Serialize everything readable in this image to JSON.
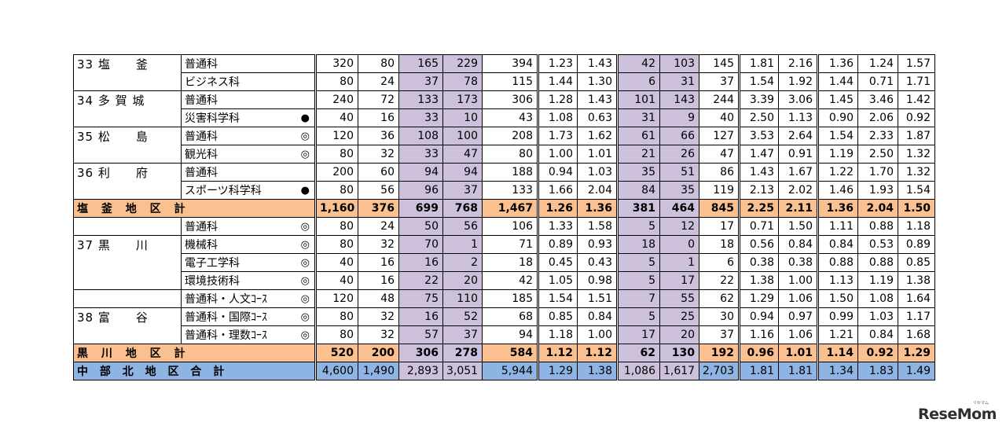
{
  "rows": [
    {
      "school": "33 塩　　釜",
      "dept": "普通科",
      "mark": "",
      "v": [
        "320",
        "80",
        "165",
        "229",
        "394",
        "1.23",
        "1.43",
        "42",
        "103",
        "145",
        "1.81",
        "2.16",
        "1.36",
        "1.24",
        "1.57"
      ]
    },
    {
      "school": "",
      "dept": "ビジネス科",
      "mark": "",
      "v": [
        "80",
        "24",
        "37",
        "78",
        "115",
        "1.44",
        "1.30",
        "6",
        "31",
        "37",
        "1.54",
        "1.92",
        "1.44",
        "0.71",
        "1.71"
      ]
    },
    {
      "school": "34 多 賀 城",
      "dept": "普通科",
      "mark": "",
      "v": [
        "240",
        "72",
        "133",
        "173",
        "306",
        "1.28",
        "1.43",
        "101",
        "143",
        "244",
        "3.39",
        "3.06",
        "1.45",
        "3.46",
        "1.42"
      ]
    },
    {
      "school": "",
      "dept": "災害科学科",
      "mark": "●",
      "v": [
        "40",
        "16",
        "33",
        "10",
        "43",
        "1.08",
        "0.63",
        "31",
        "9",
        "40",
        "2.50",
        "1.13",
        "0.90",
        "2.06",
        "0.92"
      ]
    },
    {
      "school": "35 松　　島",
      "dept": "普通科",
      "mark": "◎",
      "v": [
        "120",
        "36",
        "108",
        "100",
        "208",
        "1.73",
        "1.62",
        "61",
        "66",
        "127",
        "3.53",
        "2.64",
        "1.54",
        "2.33",
        "1.87"
      ]
    },
    {
      "school": "",
      "dept": "観光科",
      "mark": "◎",
      "v": [
        "80",
        "32",
        "33",
        "47",
        "80",
        "1.00",
        "1.01",
        "21",
        "26",
        "47",
        "1.47",
        "0.91",
        "1.19",
        "2.50",
        "1.32"
      ]
    },
    {
      "school": "36 利　　府",
      "dept": "普通科",
      "mark": "",
      "v": [
        "200",
        "60",
        "94",
        "94",
        "188",
        "0.94",
        "1.03",
        "35",
        "51",
        "86",
        "1.43",
        "1.67",
        "1.22",
        "1.70",
        "1.32"
      ]
    },
    {
      "school": "",
      "dept": "スポーツ科学科",
      "mark": "●",
      "v": [
        "80",
        "56",
        "96",
        "37",
        "133",
        "1.66",
        "2.04",
        "84",
        "35",
        "119",
        "2.13",
        "2.02",
        "1.46",
        "1.93",
        "1.54"
      ]
    },
    {
      "subtotal": "塩 釜 地 区 計",
      "v": [
        "1,160",
        "376",
        "699",
        "768",
        "1,467",
        "1.26",
        "1.36",
        "381",
        "464",
        "845",
        "2.25",
        "2.11",
        "1.36",
        "2.04",
        "1.50"
      ]
    },
    {
      "school": "",
      "dept": "普通科",
      "mark": "◎",
      "v": [
        "80",
        "24",
        "50",
        "56",
        "106",
        "1.33",
        "1.58",
        "5",
        "12",
        "17",
        "0.71",
        "1.50",
        "1.11",
        "0.88",
        "1.18"
      ]
    },
    {
      "school": "37 黒　　川",
      "dept": "機械科",
      "mark": "◎",
      "v": [
        "80",
        "32",
        "70",
        "1",
        "71",
        "0.89",
        "0.93",
        "18",
        "0",
        "18",
        "0.56",
        "0.84",
        "0.84",
        "0.53",
        "0.89"
      ]
    },
    {
      "school": "",
      "dept": "電子工学科",
      "mark": "◎",
      "v": [
        "40",
        "16",
        "16",
        "2",
        "18",
        "0.45",
        "0.43",
        "5",
        "1",
        "6",
        "0.38",
        "0.38",
        "0.88",
        "0.88",
        "0.85"
      ]
    },
    {
      "school": "",
      "dept": "環境技術科",
      "mark": "◎",
      "v": [
        "40",
        "16",
        "22",
        "20",
        "42",
        "1.05",
        "0.98",
        "5",
        "17",
        "22",
        "1.38",
        "1.00",
        "1.13",
        "1.19",
        "1.38"
      ]
    },
    {
      "school": "",
      "dept": "普通科・人文ｺｰｽ",
      "mark": "◎",
      "v": [
        "120",
        "48",
        "75",
        "110",
        "185",
        "1.54",
        "1.51",
        "7",
        "55",
        "62",
        "1.29",
        "1.06",
        "1.50",
        "1.08",
        "1.64"
      ]
    },
    {
      "school": "38 富　　谷",
      "dept": "普通科・国際ｺｰｽ",
      "mark": "◎",
      "v": [
        "80",
        "32",
        "16",
        "52",
        "68",
        "0.85",
        "0.84",
        "5",
        "25",
        "30",
        "0.94",
        "0.97",
        "0.99",
        "1.03",
        "1.17"
      ]
    },
    {
      "school": "",
      "dept": "普通科・理数ｺｰｽ",
      "mark": "◎",
      "v": [
        "80",
        "32",
        "57",
        "37",
        "94",
        "1.18",
        "1.00",
        "17",
        "20",
        "37",
        "1.16",
        "1.06",
        "1.21",
        "0.84",
        "1.68"
      ]
    },
    {
      "subtotal": "黒 川 地 区 計",
      "v": [
        "520",
        "200",
        "306",
        "278",
        "584",
        "1.12",
        "1.12",
        "62",
        "130",
        "192",
        "0.96",
        "1.01",
        "1.14",
        "0.92",
        "1.29"
      ]
    },
    {
      "total": "中 部 北 地 区 合 計",
      "v": [
        "4,600",
        "1,490",
        "2,893",
        "3,051",
        "5,944",
        "1.29",
        "1.38",
        "1,086",
        "1,617",
        "2,703",
        "1.81",
        "1.81",
        "1.34",
        "1.83",
        "1.49"
      ]
    }
  ],
  "colors": {
    "purple": "#ccc0da",
    "subtotal": "#fac090",
    "total": "#8db4e2"
  },
  "logo": "ReseMom",
  "logo_sub": "リセマム"
}
